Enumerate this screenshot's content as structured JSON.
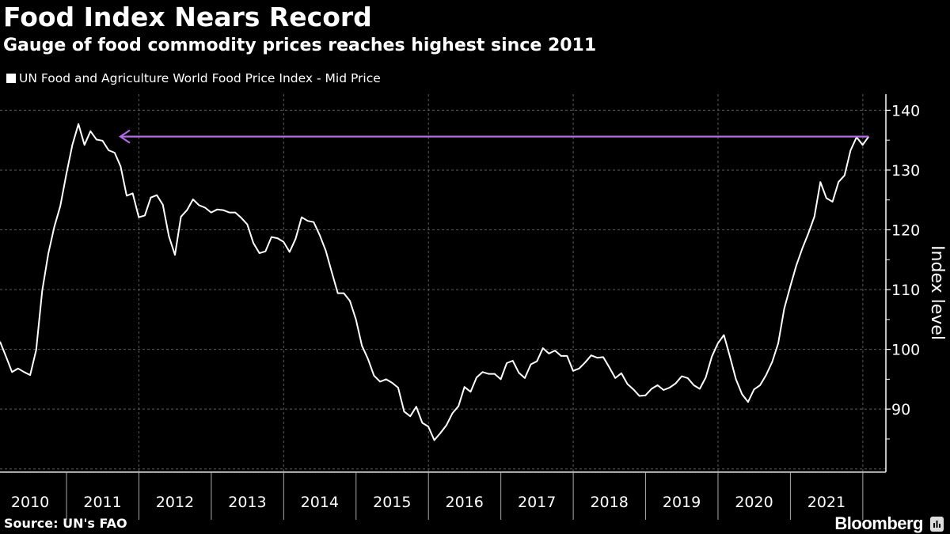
{
  "chart_data": {
    "type": "line",
    "title": "Food Index Nears Record",
    "subtitle": "Gauge of food commodity prices reaches highest since 2011",
    "legend": [
      "UN Food and Agriculture World Food Price Index - Mid Price"
    ],
    "legend_placement": "top-left",
    "ylabel": "Index level",
    "xlabel": "",
    "x_start": "2010-01",
    "x_frequency": "monthly",
    "x_end": "2022-01",
    "ylim": [
      80,
      142.7
    ],
    "y_axis_side": "right",
    "yticks": [
      90,
      100,
      110,
      120,
      130,
      140
    ],
    "xtick_labels": [
      "2010",
      "2011",
      "2012",
      "2013",
      "2014",
      "2015",
      "2016",
      "2017",
      "2018",
      "2019",
      "2020",
      "2021"
    ],
    "grid": true,
    "series": [
      {
        "name": "UN Food and Agriculture World Food Price Index - Mid Price",
        "color": "#ffffff",
        "values": [
          101.3,
          98.8,
          96.2,
          96.8,
          96.2,
          95.7,
          99.9,
          109.8,
          116.0,
          120.5,
          124.0,
          129.3,
          134.2,
          137.7,
          134.2,
          136.5,
          135.1,
          134.9,
          133.3,
          132.9,
          130.6,
          125.7,
          126.1,
          122.1,
          122.4,
          125.4,
          125.8,
          124.2,
          118.9,
          115.8,
          122.2,
          123.3,
          125.1,
          124.1,
          123.7,
          122.9,
          123.4,
          123.3,
          122.9,
          122.9,
          122.0,
          120.9,
          117.8,
          116.1,
          116.4,
          118.8,
          118.6,
          118.0,
          116.3,
          118.5,
          122.1,
          121.5,
          121.3,
          119.1,
          116.5,
          112.9,
          109.4,
          109.4,
          108.1,
          105.0,
          100.6,
          98.4,
          95.6,
          94.6,
          95.0,
          94.4,
          93.6,
          89.6,
          88.8,
          90.4,
          87.7,
          87.1,
          84.8,
          86.0,
          87.3,
          89.3,
          90.5,
          93.7,
          92.9,
          95.3,
          96.2,
          95.9,
          95.9,
          95.0,
          97.7,
          98.1,
          96.1,
          95.2,
          97.5,
          98.0,
          100.2,
          99.3,
          99.8,
          98.9,
          98.9,
          96.4,
          96.8,
          97.8,
          99.0,
          98.6,
          98.7,
          97.0,
          95.2,
          96.0,
          94.2,
          93.3,
          92.2,
          92.3,
          93.4,
          94.0,
          93.2,
          93.6,
          94.3,
          95.5,
          95.2,
          94.0,
          93.4,
          95.3,
          98.8,
          101.0,
          102.4,
          98.8,
          95.0,
          92.5,
          91.2,
          93.3,
          94.0,
          95.7,
          97.9,
          101.0,
          106.8,
          110.5,
          114.0,
          116.9,
          119.4,
          122.2,
          128.0,
          125.3,
          124.7,
          128.0,
          129.1,
          133.3,
          135.5,
          134.2,
          135.6
        ]
      }
    ],
    "annotation": {
      "type": "horizontal-arrow",
      "value": 135.6,
      "color": "#b36be8",
      "direction": "left",
      "from": "2022-01",
      "to": "2011-06"
    }
  },
  "footer": {
    "source": "Source: UN's FAO",
    "brand": "Bloomberg"
  }
}
